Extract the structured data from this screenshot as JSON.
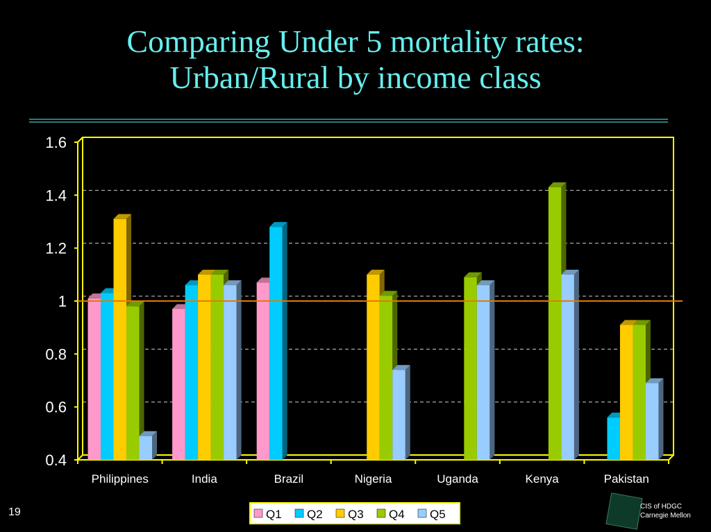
{
  "slide": {
    "title_line1": "Comparing Under 5 mortality rates:",
    "title_line2": "Urban/Rural by income class",
    "slide_number": "19",
    "logo_line1": "CIS of HDGC",
    "logo_line2": "Carnegie Mellon"
  },
  "colors": {
    "title": "#66eeee",
    "plot_border": "#ffff00",
    "reference_line": "#e07b00",
    "Q1": "#ff99cc",
    "Q2": "#00ccff",
    "Q3": "#ffcc00",
    "Q4": "#99cc00",
    "Q5": "#99ccff"
  },
  "chart_data": {
    "type": "bar",
    "title": "",
    "xlabel": "",
    "ylabel": "",
    "ylim": [
      0.4,
      1.6
    ],
    "yticks": [
      "0.4",
      "0.6",
      "0.8",
      "1",
      "1.2",
      "1.4",
      "1.6"
    ],
    "grid": "horizontal dashed",
    "reference_line": 1,
    "legend_position": "bottom",
    "categories": [
      "Philippines",
      "India",
      "Brazil",
      "Nigeria",
      "Uganda",
      "Kenya",
      "Pakistan"
    ],
    "series": [
      {
        "name": "Q1",
        "values": [
          1.01,
          0.97,
          1.07,
          null,
          null,
          null,
          null
        ]
      },
      {
        "name": "Q2",
        "values": [
          1.03,
          1.06,
          1.28,
          null,
          null,
          null,
          0.56
        ]
      },
      {
        "name": "Q3",
        "values": [
          1.31,
          1.1,
          null,
          1.1,
          null,
          null,
          0.91
        ]
      },
      {
        "name": "Q4",
        "values": [
          0.98,
          1.1,
          null,
          1.02,
          1.09,
          1.43,
          0.91
        ]
      },
      {
        "name": "Q5",
        "values": [
          0.49,
          1.06,
          null,
          0.74,
          1.06,
          1.1,
          0.69
        ]
      }
    ]
  }
}
